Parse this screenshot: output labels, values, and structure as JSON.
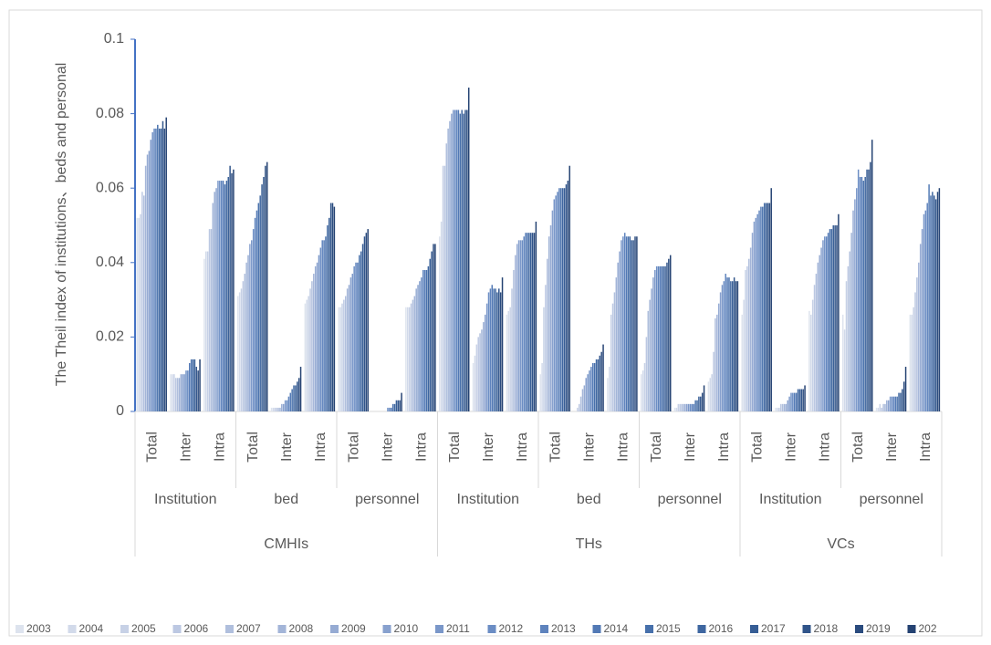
{
  "chart_data": {
    "type": "bar",
    "y_label": "The Theil index of institutions、beds and personal",
    "categories": [
      "Total",
      "Inter",
      "Intra",
      "Total",
      "Inter",
      "Intra",
      "Total",
      "Inter",
      "Intra",
      "Total",
      "Inter",
      "Intra",
      "Total",
      "Inter",
      "Intra",
      "Total",
      "Inter",
      "Intra",
      "Total",
      "Inter",
      "Intra",
      "Total",
      "Inter",
      "Intra"
    ],
    "category_groups": [
      {
        "label": "Institution",
        "count": 3
      },
      {
        "label": "bed",
        "count": 3
      },
      {
        "label": "personnel",
        "count": 3
      },
      {
        "label": "Institution",
        "count": 3
      },
      {
        "label": "bed",
        "count": 3
      },
      {
        "label": "personnel",
        "count": 3
      },
      {
        "label": "Institution",
        "count": 3
      },
      {
        "label": "personnel",
        "count": 3
      }
    ],
    "category_supergroups": [
      {
        "label": "CMHIs",
        "count": 9
      },
      {
        "label": "THs",
        "count": 9
      },
      {
        "label": "VCs",
        "count": 6
      }
    ],
    "ylim": [
      0,
      0.1
    ],
    "yticks": [
      0,
      0.02,
      0.04,
      0.06,
      0.08,
      0.1
    ],
    "grid": false,
    "legend": "bottom",
    "series": [
      {
        "name": "2003",
        "color": "#dde3ee",
        "values": [
          0.052,
          0.01,
          0.041,
          0.031,
          0.001,
          0.029,
          0.028,
          0,
          0.028,
          0.047,
          0.013,
          0.026,
          0.01,
          0,
          0.009,
          0.01,
          0.001,
          0.008,
          0.026,
          0.001,
          0.027,
          0.026,
          0.001,
          0.026
        ]
      },
      {
        "name": "2004",
        "color": "#d2daea",
        "values": [
          0.052,
          0.01,
          0.043,
          0.032,
          0.001,
          0.03,
          0.028,
          0,
          0.028,
          0.051,
          0.015,
          0.027,
          0.013,
          0,
          0.012,
          0.011,
          0.001,
          0.009,
          0.03,
          0.001,
          0.026,
          0.022,
          0.001,
          0.026
        ]
      },
      {
        "name": "2005",
        "color": "#c7d1e6",
        "values": [
          0.053,
          0.01,
          0.043,
          0.033,
          0.001,
          0.031,
          0.029,
          0,
          0.028,
          0.066,
          0.018,
          0.028,
          0.028,
          0.001,
          0.026,
          0.013,
          0.002,
          0.01,
          0.038,
          0.001,
          0.03,
          0.035,
          0.002,
          0.028
        ]
      },
      {
        "name": "2006",
        "color": "#bcc8e2",
        "values": [
          0.059,
          0.009,
          0.049,
          0.035,
          0.001,
          0.033,
          0.03,
          0,
          0.029,
          0.066,
          0.02,
          0.033,
          0.034,
          0.002,
          0.029,
          0.02,
          0.002,
          0.016,
          0.039,
          0.002,
          0.034,
          0.039,
          0.001,
          0.032
        ]
      },
      {
        "name": "2007",
        "color": "#b0bfdd",
        "values": [
          0.058,
          0.009,
          0.049,
          0.037,
          0.001,
          0.035,
          0.031,
          0,
          0.03,
          0.072,
          0.021,
          0.038,
          0.041,
          0.004,
          0.032,
          0.027,
          0.002,
          0.025,
          0.041,
          0.002,
          0.037,
          0.043,
          0.002,
          0.036
        ]
      },
      {
        "name": "2008",
        "color": "#a3b5d8",
        "values": [
          0.066,
          0.009,
          0.056,
          0.04,
          0.001,
          0.037,
          0.033,
          0,
          0.031,
          0.076,
          0.022,
          0.042,
          0.047,
          0.006,
          0.036,
          0.03,
          0.002,
          0.026,
          0.044,
          0.002,
          0.04,
          0.048,
          0.002,
          0.04
        ]
      },
      {
        "name": "2009",
        "color": "#96abd3",
        "values": [
          0.069,
          0.01,
          0.059,
          0.042,
          0.002,
          0.039,
          0.034,
          0,
          0.033,
          0.078,
          0.024,
          0.045,
          0.05,
          0.007,
          0.04,
          0.033,
          0.002,
          0.029,
          0.048,
          0.002,
          0.042,
          0.054,
          0.003,
          0.045
        ]
      },
      {
        "name": "2010",
        "color": "#88a1ce",
        "values": [
          0.07,
          0.01,
          0.06,
          0.045,
          0.002,
          0.04,
          0.036,
          0,
          0.034,
          0.08,
          0.026,
          0.046,
          0.054,
          0.009,
          0.043,
          0.036,
          0.002,
          0.032,
          0.051,
          0.003,
          0.044,
          0.057,
          0.003,
          0.049
        ]
      },
      {
        "name": "2011",
        "color": "#7a97c9",
        "values": [
          0.073,
          0.01,
          0.062,
          0.046,
          0.003,
          0.042,
          0.037,
          0,
          0.035,
          0.081,
          0.029,
          0.046,
          0.057,
          0.01,
          0.046,
          0.038,
          0.002,
          0.034,
          0.052,
          0.004,
          0.046,
          0.06,
          0.004,
          0.053
        ]
      },
      {
        "name": "2012",
        "color": "#6b8dc4",
        "values": [
          0.075,
          0.011,
          0.062,
          0.049,
          0.003,
          0.044,
          0.039,
          0.001,
          0.036,
          0.081,
          0.032,
          0.046,
          0.058,
          0.011,
          0.047,
          0.039,
          0.002,
          0.035,
          0.053,
          0.005,
          0.047,
          0.065,
          0.004,
          0.054
        ]
      },
      {
        "name": "2013",
        "color": "#5e83bd",
        "values": [
          0.076,
          0.011,
          0.062,
          0.052,
          0.004,
          0.046,
          0.04,
          0.001,
          0.038,
          0.081,
          0.033,
          0.047,
          0.059,
          0.012,
          0.048,
          0.039,
          0.002,
          0.037,
          0.054,
          0.005,
          0.047,
          0.063,
          0.004,
          0.056
        ]
      },
      {
        "name": "2014",
        "color": "#5279b5",
        "values": [
          0.076,
          0.013,
          0.062,
          0.054,
          0.005,
          0.046,
          0.04,
          0.001,
          0.038,
          0.081,
          0.034,
          0.048,
          0.06,
          0.013,
          0.047,
          0.039,
          0.002,
          0.036,
          0.055,
          0.005,
          0.048,
          0.063,
          0.004,
          0.061
        ]
      },
      {
        "name": "2015",
        "color": "#4770ab",
        "values": [
          0.077,
          0.014,
          0.061,
          0.056,
          0.006,
          0.047,
          0.042,
          0.002,
          0.038,
          0.08,
          0.033,
          0.048,
          0.06,
          0.013,
          0.047,
          0.039,
          0.003,
          0.036,
          0.055,
          0.005,
          0.049,
          0.062,
          0.004,
          0.058
        ]
      },
      {
        "name": "2016",
        "color": "#3e66a0",
        "values": [
          0.076,
          0.014,
          0.062,
          0.058,
          0.007,
          0.05,
          0.043,
          0.002,
          0.039,
          0.081,
          0.033,
          0.048,
          0.06,
          0.014,
          0.047,
          0.039,
          0.003,
          0.035,
          0.056,
          0.006,
          0.049,
          0.063,
          0.005,
          0.059
        ]
      },
      {
        "name": "2017",
        "color": "#365d95",
        "values": [
          0.076,
          0.014,
          0.063,
          0.061,
          0.007,
          0.052,
          0.045,
          0.003,
          0.041,
          0.08,
          0.032,
          0.048,
          0.06,
          0.014,
          0.046,
          0.039,
          0.004,
          0.035,
          0.056,
          0.006,
          0.05,
          0.065,
          0.005,
          0.058
        ]
      },
      {
        "name": "2018",
        "color": "#30548a",
        "values": [
          0.078,
          0.012,
          0.066,
          0.063,
          0.008,
          0.056,
          0.047,
          0.003,
          0.043,
          0.081,
          0.033,
          0.048,
          0.061,
          0.015,
          0.046,
          0.04,
          0.004,
          0.036,
          0.056,
          0.006,
          0.05,
          0.065,
          0.006,
          0.057
        ]
      },
      {
        "name": "2019",
        "color": "#2a4b7e",
        "values": [
          0.076,
          0.011,
          0.064,
          0.066,
          0.009,
          0.056,
          0.048,
          0.003,
          0.045,
          0.081,
          0.032,
          0.048,
          0.062,
          0.016,
          0.047,
          0.041,
          0.005,
          0.035,
          0.056,
          0.006,
          0.05,
          0.067,
          0.008,
          0.059
        ]
      },
      {
        "name": "202",
        "color": "#244272",
        "values": [
          0.079,
          0.014,
          0.065,
          0.067,
          0.012,
          0.055,
          0.049,
          0.005,
          0.045,
          0.087,
          0.036,
          0.051,
          0.066,
          0.018,
          0.047,
          0.042,
          0.007,
          0.035,
          0.06,
          0.007,
          0.053,
          0.073,
          0.012,
          0.06
        ]
      }
    ]
  }
}
